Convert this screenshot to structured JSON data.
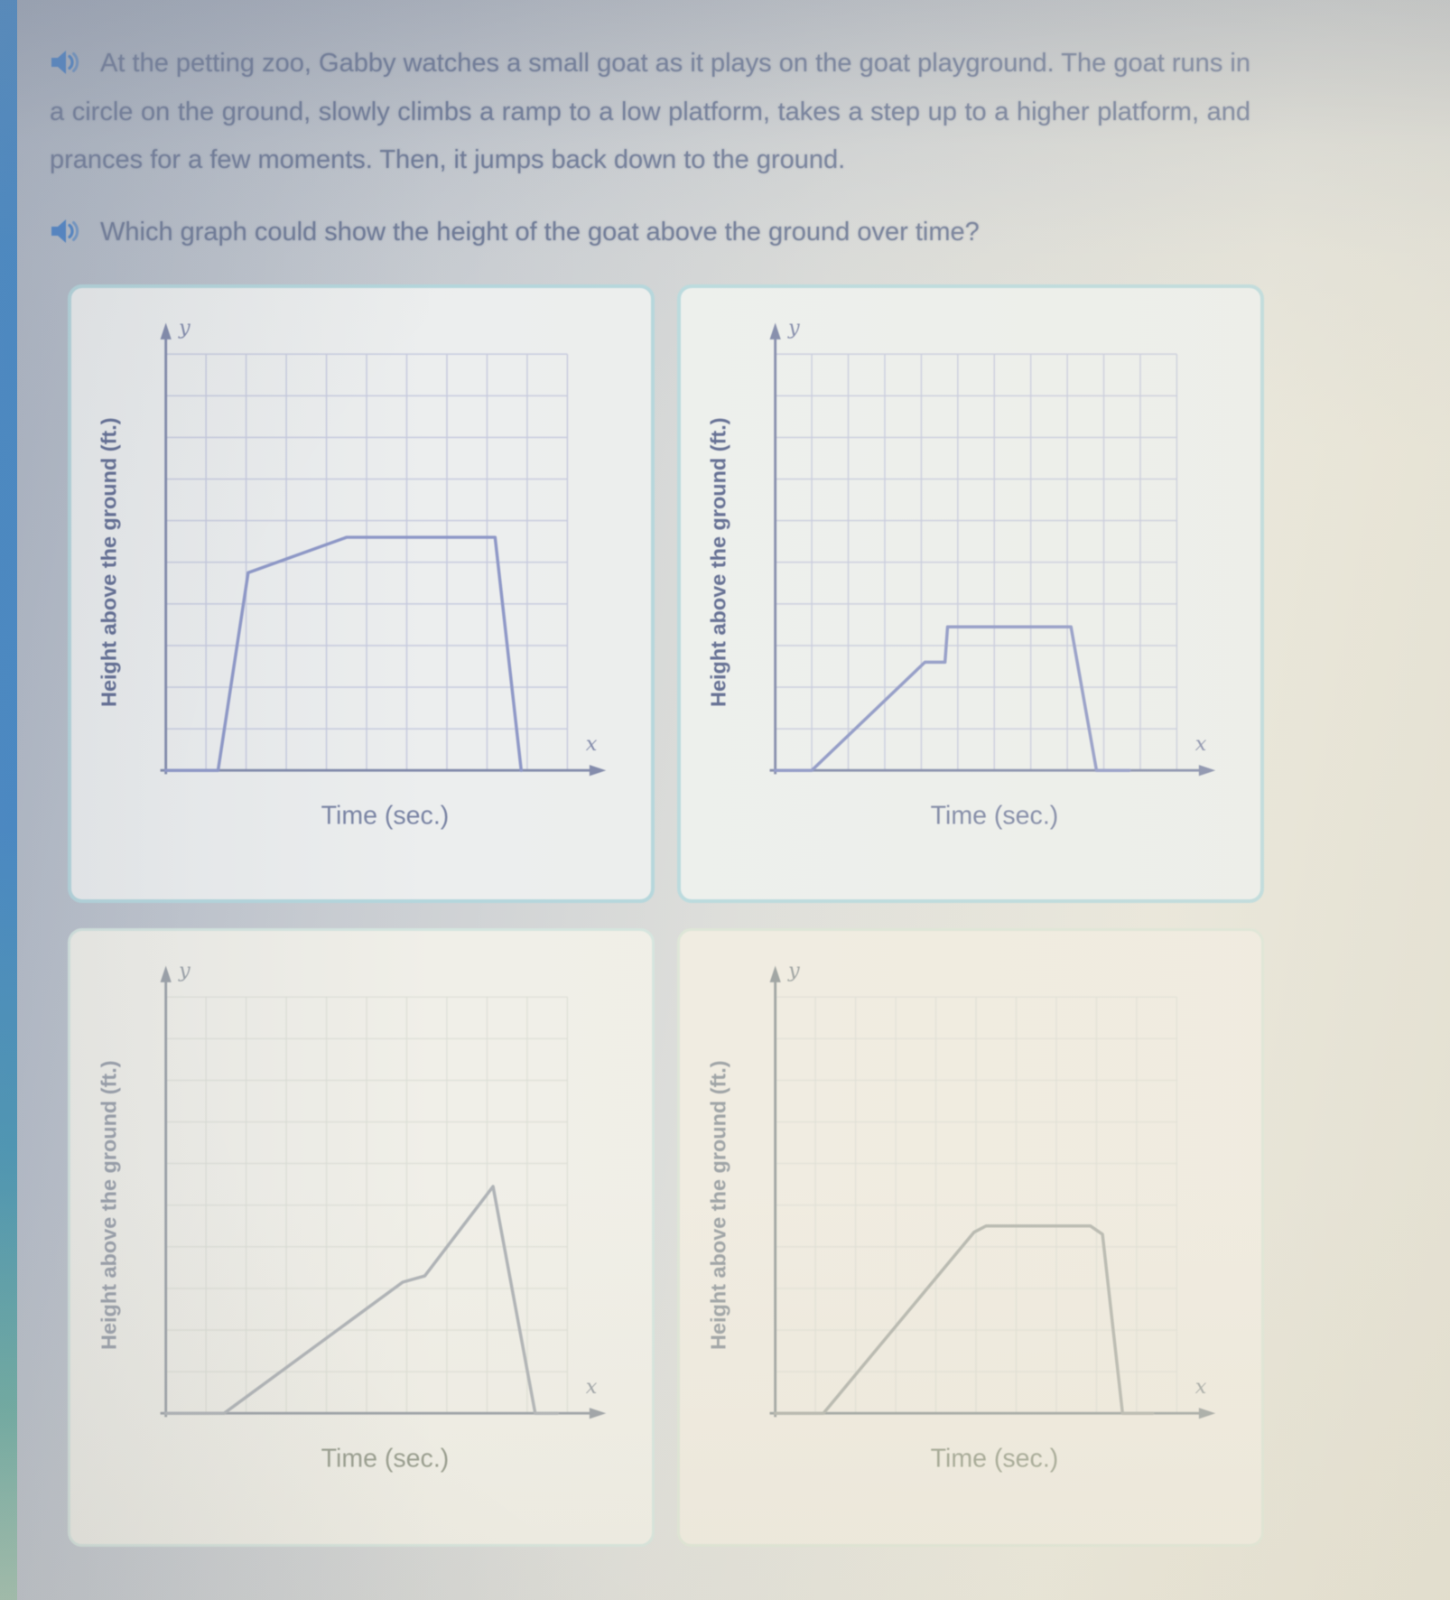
{
  "page": {
    "colors": {
      "left_strip": "#3f86c6",
      "speaker_icon": "#4b82c6",
      "body_text": "#6e7a97",
      "top_panel_border": "#b7d8de",
      "bottom_panel_border": "#d9e6db",
      "curve_top": "#8d97c7",
      "curve_bottom": "#aeb2b6"
    }
  },
  "problem": {
    "statement": "At the petting zoo, Gabby watches a small goat as it plays on the goat playground. The goat runs in a circle on the ground, slowly climbs a ramp to a low platform, takes a step up to a higher platform, and prances for a few moments. Then, it jumps back down to the ground.",
    "question": "Which graph could show the height of the goat above the ground over time?"
  },
  "chart_data": [
    {
      "id": "graph-top-left",
      "type": "line",
      "title": "",
      "xlabel": "Time (sec.)",
      "ylabel": "Height above the ground (ft.)",
      "axis_letters": {
        "x": "x",
        "y": "y"
      },
      "xlim": [
        0,
        10
      ],
      "ylim": [
        0,
        10
      ],
      "ticks": "none",
      "grid": {
        "cols": 10,
        "rows": 10,
        "visible": true
      },
      "points": [
        [
          0,
          0
        ],
        [
          1.3,
          0
        ],
        [
          2.05,
          4.75
        ],
        [
          4.5,
          5.6
        ],
        [
          8.2,
          5.6
        ],
        [
          8.85,
          0
        ]
      ],
      "shape_note": "flat, steep rise, slow rise, long plateau, steep drop",
      "style": {
        "line": "#8d97c7",
        "grid": "#c6cade",
        "grid_opacity": 0.9,
        "axis": "#8089aa",
        "letters": "#8089aa",
        "ylabel_color": "#5d6990",
        "xlabel_color": "#7a84a4"
      }
    },
    {
      "id": "graph-top-right",
      "type": "line",
      "title": "",
      "xlabel": "Time (sec.)",
      "ylabel": "Height above the ground (ft.)",
      "axis_letters": {
        "x": "x",
        "y": "y"
      },
      "xlim": [
        0,
        11
      ],
      "ylim": [
        0,
        10
      ],
      "ticks": "none",
      "grid": {
        "cols": 11,
        "rows": 10,
        "visible": true
      },
      "points": [
        [
          0,
          0
        ],
        [
          1,
          0
        ],
        [
          4.1,
          2.6
        ],
        [
          4.65,
          2.6
        ],
        [
          4.72,
          3.45
        ],
        [
          8.1,
          3.45
        ],
        [
          8.8,
          0
        ],
        [
          9.7,
          0
        ]
      ],
      "shape_note": "flat, slow ramp, short ledge, small vertical step up, long plateau, steep drop, flat",
      "style": {
        "line": "#8d97c7",
        "grid": "#c6cade",
        "grid_opacity": 0.85,
        "axis": "#8089aa",
        "letters": "#8089aa",
        "ylabel_color": "#5d6990",
        "xlabel_color": "#7a84a4"
      }
    },
    {
      "id": "graph-bottom-left",
      "type": "line",
      "title": "",
      "xlabel": "Time (sec.)",
      "ylabel": "Height above the ground (ft.)",
      "axis_letters": {
        "x": "x",
        "y": "y"
      },
      "xlim": [
        0,
        10
      ],
      "ylim": [
        0,
        10
      ],
      "ticks": "none",
      "grid": {
        "cols": 10,
        "rows": 10,
        "visible": true
      },
      "points": [
        [
          0,
          0
        ],
        [
          1.45,
          0
        ],
        [
          5.9,
          3.15
        ],
        [
          6.45,
          3.3
        ],
        [
          8.15,
          5.45
        ],
        [
          9.2,
          0
        ],
        [
          9.75,
          0
        ]
      ],
      "shape_note": "flat, long slow ramp, slight bend, steeper rise to sharp peak, steep drop, flat",
      "style": {
        "line": "#aeb2b6",
        "grid": "#dcded6",
        "grid_opacity": 0.7,
        "axis": "#9aa0a6",
        "letters": "#9aa0a6",
        "ylabel_color": "#989ea8",
        "xlabel_color": "#949a8c"
      }
    },
    {
      "id": "graph-bottom-right",
      "type": "line",
      "title": "",
      "xlabel": "Time (sec.)",
      "ylabel": "Height above the ground (ft.)",
      "axis_letters": {
        "x": "x",
        "y": "y"
      },
      "xlim": [
        0,
        10
      ],
      "ylim": [
        0,
        10
      ],
      "ticks": "none",
      "grid": {
        "cols": 10,
        "rows": 10,
        "visible": true
      },
      "points": [
        [
          0,
          0
        ],
        [
          1.2,
          0
        ],
        [
          4.95,
          4.35
        ],
        [
          5.25,
          4.5
        ],
        [
          7.85,
          4.5
        ],
        [
          8.15,
          4.3
        ],
        [
          8.65,
          0
        ],
        [
          9.4,
          0
        ]
      ],
      "shape_note": "flat, slow ramp, rounded plateau, steep drop, flat — no step up",
      "style": {
        "line": "#b2b4ad",
        "grid": "#dddfd5",
        "grid_opacity": 0.65,
        "axis": "#9ba1a0",
        "letters": "#9ba1a0",
        "ylabel_color": "#9aa0a4",
        "xlabel_color": "#9aa08e"
      }
    }
  ]
}
